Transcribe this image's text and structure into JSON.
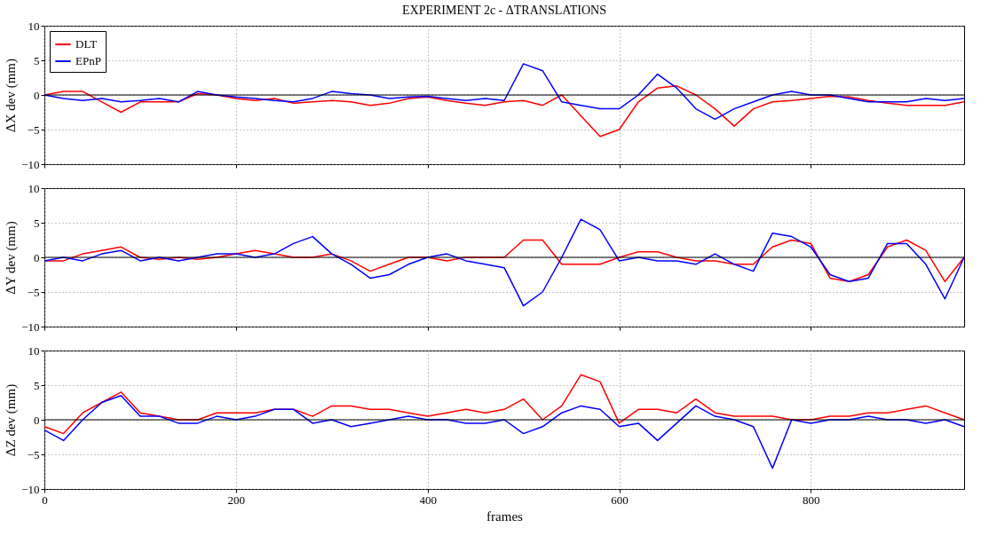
{
  "chart_data": [
    {
      "type": "line",
      "title": "EXPERIMENT 2c - ΔTRANSLATIONS",
      "ylabel": "ΔX dev (mm)",
      "xlim": [
        0,
        960
      ],
      "xticks": [
        0,
        200,
        400,
        600,
        800
      ],
      "ylim": [
        -10,
        10
      ],
      "yticks": [
        -10,
        -5,
        0,
        5,
        10
      ],
      "grid": true,
      "legend": "top left",
      "tick_labels": "y",
      "ref_lines": [
        {
          "axis": "y",
          "value": 0,
          "color": "#000000"
        }
      ],
      "x": [
        0,
        20,
        40,
        60,
        80,
        100,
        120,
        140,
        160,
        180,
        200,
        220,
        240,
        260,
        280,
        300,
        320,
        340,
        360,
        380,
        400,
        420,
        440,
        460,
        480,
        500,
        520,
        540,
        560,
        580,
        600,
        620,
        640,
        660,
        680,
        700,
        720,
        740,
        760,
        780,
        800,
        820,
        840,
        860,
        880,
        900,
        920,
        940,
        960
      ],
      "series": [
        {
          "name": "DLT",
          "color": "#ff0000",
          "values": [
            0,
            0.5,
            0.5,
            -1,
            -2.5,
            -1,
            -1,
            -1,
            0.2,
            0,
            -0.5,
            -0.8,
            -0.5,
            -1.2,
            -1,
            -0.8,
            -1,
            -1.5,
            -1.2,
            -0.5,
            -0.3,
            -0.8,
            -1.2,
            -1.5,
            -1,
            -0.8,
            -1.5,
            0,
            -3,
            -6,
            -5,
            -1,
            1,
            1.3,
            0,
            -2,
            -4.5,
            -2,
            -1,
            -0.8,
            -0.5,
            -0.2,
            -0.3,
            -0.8,
            -1.2,
            -1.5,
            -1.5,
            -1.5,
            -1
          ]
        },
        {
          "name": "EPnP",
          "color": "#0000ff",
          "values": [
            0,
            -0.5,
            -0.8,
            -0.5,
            -1,
            -0.8,
            -0.5,
            -1,
            0.5,
            0,
            -0.3,
            -0.5,
            -0.8,
            -1,
            -0.5,
            0.5,
            0.2,
            0,
            -0.5,
            -0.3,
            -0.2,
            -0.5,
            -0.8,
            -0.5,
            -0.8,
            4.5,
            3.5,
            -1,
            -1.5,
            -2,
            -2,
            0,
            3,
            1,
            -2,
            -3.5,
            -2,
            -1,
            0,
            0.5,
            0,
            0,
            -0.5,
            -1,
            -1,
            -1,
            -0.5,
            -0.8,
            -0.5
          ]
        }
      ]
    },
    {
      "type": "line",
      "ylabel": "ΔY dev (mm)",
      "xlim": [
        0,
        960
      ],
      "xticks": [
        0,
        200,
        400,
        600,
        800
      ],
      "ylim": [
        -10,
        10
      ],
      "yticks": [
        -10,
        -5,
        0,
        5,
        10
      ],
      "grid": true,
      "tick_labels": "y",
      "ref_lines": [
        {
          "axis": "y",
          "value": 0,
          "color": "#000000"
        }
      ],
      "x": [
        0,
        20,
        40,
        60,
        80,
        100,
        120,
        140,
        160,
        180,
        200,
        220,
        240,
        260,
        280,
        300,
        320,
        340,
        360,
        380,
        400,
        420,
        440,
        460,
        480,
        500,
        520,
        540,
        560,
        580,
        600,
        620,
        640,
        660,
        680,
        700,
        720,
        740,
        760,
        780,
        800,
        820,
        840,
        860,
        880,
        900,
        920,
        940,
        960
      ],
      "series": [
        {
          "color": "#ff0000",
          "values": [
            -0.5,
            -0.5,
            0.5,
            1,
            1.5,
            0,
            -0.3,
            0,
            -0.3,
            0,
            0.5,
            1,
            0.5,
            0,
            0,
            0.5,
            -0.5,
            -2,
            -1,
            0,
            0,
            -0.5,
            0,
            0,
            0,
            2.5,
            2.5,
            -1,
            -1,
            -1,
            0,
            0.8,
            0.8,
            0,
            -0.5,
            -0.5,
            -1,
            -1,
            1.5,
            2.5,
            2,
            -3,
            -3.5,
            -2.5,
            1.5,
            2.5,
            1,
            -3.5,
            0
          ]
        },
        {
          "color": "#0000ff",
          "values": [
            -0.5,
            0,
            -0.5,
            0.5,
            1,
            -0.5,
            0,
            -0.5,
            0,
            0.5,
            0.5,
            0,
            0.5,
            2,
            3,
            0.5,
            -1,
            -3,
            -2.5,
            -1,
            0,
            0.5,
            -0.5,
            -1,
            -1.5,
            -7,
            -5,
            0,
            5.5,
            4,
            -0.5,
            0,
            -0.5,
            -0.5,
            -1,
            0.5,
            -1,
            -2,
            3.5,
            3,
            1.5,
            -2.5,
            -3.5,
            -3,
            2,
            2,
            -1,
            -6,
            0
          ]
        }
      ]
    },
    {
      "type": "line",
      "xlabel": "frames",
      "ylabel": "ΔZ dev (mm)",
      "xlim": [
        0,
        960
      ],
      "xticks": [
        0,
        200,
        400,
        600,
        800
      ],
      "ylim": [
        -10,
        10
      ],
      "yticks": [
        -10,
        -5,
        0,
        5,
        10
      ],
      "grid": true,
      "ref_lines": [
        {
          "axis": "y",
          "value": 0,
          "color": "#000000"
        }
      ],
      "x": [
        0,
        20,
        40,
        60,
        80,
        100,
        120,
        140,
        160,
        180,
        200,
        220,
        240,
        260,
        280,
        300,
        320,
        340,
        360,
        380,
        400,
        420,
        440,
        460,
        480,
        500,
        520,
        540,
        560,
        580,
        600,
        620,
        640,
        660,
        680,
        700,
        720,
        740,
        760,
        780,
        800,
        820,
        840,
        860,
        880,
        900,
        920,
        940,
        960
      ],
      "series": [
        {
          "color": "#ff0000",
          "values": [
            -1,
            -2,
            1,
            2.5,
            4,
            1,
            0.5,
            0,
            0,
            1,
            1,
            1,
            1.5,
            1.5,
            0.5,
            2,
            2,
            1.5,
            1.5,
            1,
            0.5,
            1,
            1.5,
            1,
            1.5,
            3,
            0,
            2,
            6.5,
            5.5,
            -0.5,
            1.5,
            1.5,
            1,
            3,
            1,
            0.5,
            0.5,
            0.5,
            0,
            0,
            0.5,
            0.5,
            1,
            1,
            1.5,
            2,
            1,
            0
          ]
        },
        {
          "color": "#0000ff",
          "values": [
            -1.5,
            -3,
            0,
            2.5,
            3.5,
            0.5,
            0.5,
            -0.5,
            -0.5,
            0.5,
            0,
            0.5,
            1.5,
            1.5,
            -0.5,
            0,
            -1,
            -0.5,
            0,
            0.5,
            0,
            0,
            -0.5,
            -0.5,
            0,
            -2,
            -1,
            1,
            2,
            1.5,
            -1,
            -0.5,
            -3,
            -0.5,
            2,
            0.5,
            0,
            -1,
            -7,
            0,
            -0.5,
            0,
            0,
            0.5,
            0,
            0,
            -0.5,
            0,
            -1
          ]
        }
      ]
    }
  ]
}
